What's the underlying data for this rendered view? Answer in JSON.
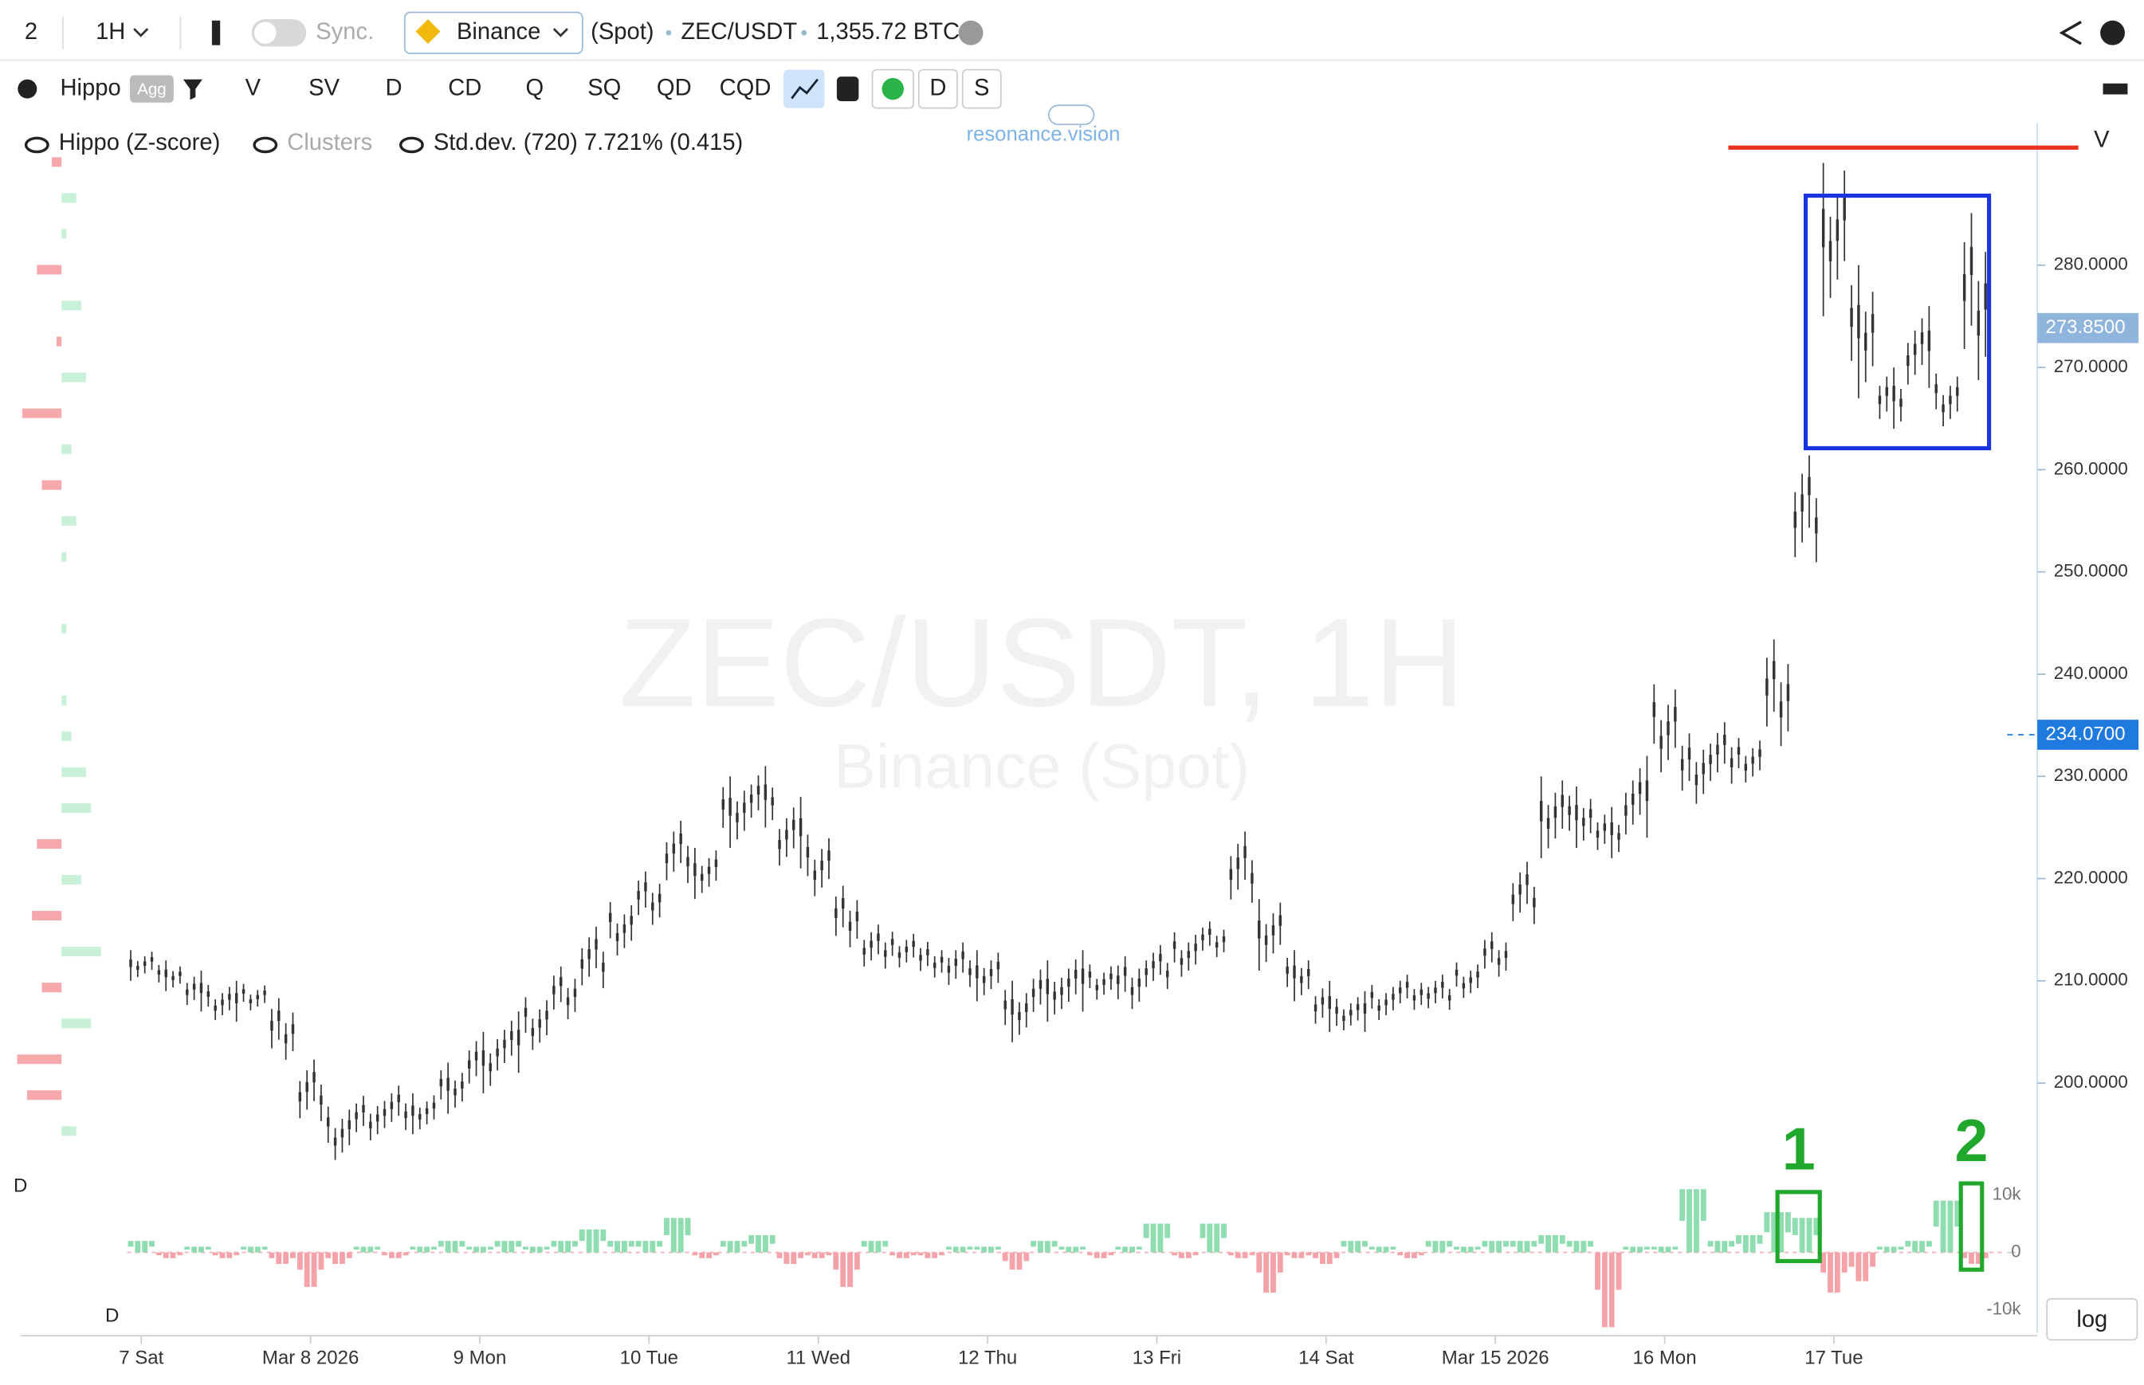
{
  "toolbar": {
    "layout": "2",
    "interval": "1H",
    "sync": "Sync.",
    "exchange": "Binance",
    "market": "(Spot)",
    "symbol": "ZEC/USDT",
    "volume": "1,355.72 BTC",
    "scale": "log"
  },
  "indicators": {
    "name": "Hippo",
    "badge": "Agg",
    "buttons": [
      "V",
      "SV",
      "D",
      "CD",
      "Q",
      "SQ",
      "QD",
      "CQD"
    ],
    "toggles": [
      "D",
      "S"
    ]
  },
  "legend": {
    "items": [
      "Hippo (Z-score)",
      "Clusters",
      "Std.dev. (720) 7.721% (0.415)"
    ],
    "brand": "resonance.vision"
  },
  "watermark": {
    "title": "ZEC/USDT, 1H",
    "subtitle": "Binance (Spot)"
  },
  "chart_data": [
    {
      "type": "range",
      "axis_label": "V",
      "color": "#333333",
      "x": [
        0,
        4,
        8,
        12,
        16,
        20,
        24,
        28,
        32,
        36,
        40,
        44,
        48,
        52,
        56,
        60,
        64,
        68,
        72,
        76,
        80,
        84,
        88,
        92,
        96,
        100,
        104,
        108,
        112,
        116,
        120,
        124,
        128,
        132,
        136,
        140,
        144,
        148,
        152,
        156,
        160,
        164,
        168,
        172,
        176,
        180,
        184,
        188,
        192,
        196,
        200,
        204,
        208,
        212,
        216,
        220,
        224,
        228,
        232,
        236,
        240,
        244,
        248,
        252,
        256,
        260
      ],
      "low": [
        210,
        209,
        207,
        206,
        207,
        202,
        196,
        192,
        194,
        195,
        195,
        197,
        199,
        201,
        203,
        206,
        209,
        212,
        215,
        219,
        218,
        223,
        225,
        221,
        218,
        213,
        211,
        211,
        210,
        209,
        208,
        204,
        206,
        207,
        208,
        207,
        209,
        210,
        212,
        217,
        211,
        208,
        205,
        205,
        206,
        207,
        207,
        208,
        210,
        215,
        222,
        223,
        222,
        224,
        230,
        227,
        229,
        229,
        232,
        250,
        275,
        267,
        264,
        268,
        264,
        268
      ],
      "high": [
        213,
        212,
        211,
        210,
        210,
        209,
        203,
        198,
        199,
        200,
        199,
        202,
        205,
        207,
        209,
        212,
        216,
        218,
        221,
        226,
        223,
        230,
        231,
        228,
        225,
        220,
        216,
        215,
        214,
        214,
        213,
        210,
        212,
        213,
        212,
        213,
        214,
        215,
        216,
        225,
        218,
        213,
        210,
        209,
        210,
        211,
        211,
        212,
        215,
        222,
        230,
        229,
        227,
        232,
        240,
        235,
        236,
        234,
        244,
        262,
        290,
        280,
        270,
        276,
        270,
        287
      ],
      "xlim": [
        -2,
        264
      ],
      "xticks": [
        {
          "value": 0,
          "label": "7 Sat"
        },
        {
          "value": 24,
          "label": "Mar 8 2026"
        },
        {
          "value": 48,
          "label": "9 Mon"
        },
        {
          "value": 72,
          "label": "10 Tue"
        },
        {
          "value": 96,
          "label": "11 Wed"
        },
        {
          "value": 120,
          "label": "12 Thu"
        },
        {
          "value": 144,
          "label": "13 Fri"
        },
        {
          "value": 168,
          "label": "14 Sat"
        },
        {
          "value": 192,
          "label": "Mar 15 2026"
        },
        {
          "value": 216,
          "label": "16 Mon"
        },
        {
          "value": 240,
          "label": "17 Tue"
        }
      ],
      "ylim": [
        191.6,
        293.9
      ],
      "yticks": [
        {
          "value": 200,
          "label": "200.0000"
        },
        {
          "value": 210,
          "label": "210.0000"
        },
        {
          "value": 220,
          "label": "220.0000"
        },
        {
          "value": 230,
          "label": "230.0000"
        },
        {
          "value": 240,
          "label": "240.0000"
        },
        {
          "value": 250,
          "label": "250.0000"
        },
        {
          "value": 260,
          "label": "260.0000"
        },
        {
          "value": 270,
          "label": "270.0000"
        },
        {
          "value": 280,
          "label": "280.0000"
        }
      ],
      "last_price": {
        "value": 273.85,
        "label": "273.8500"
      },
      "marker_price": {
        "value": 234.07,
        "label": "234.0700"
      },
      "resistance": {
        "value": 291.5,
        "color": "#e8321e"
      },
      "range_box": {
        "x": [
          236,
          262
        ],
        "y": [
          262.1,
          286.8
        ],
        "color": "#1a35e0"
      }
    },
    {
      "type": "bar",
      "axis_label": "D",
      "pos_color": "#8fdcb0",
      "neg_color": "#f5a3a8",
      "x": [
        0,
        4,
        8,
        12,
        16,
        20,
        24,
        28,
        32,
        36,
        40,
        44,
        48,
        52,
        56,
        60,
        64,
        68,
        72,
        76,
        80,
        84,
        88,
        92,
        96,
        100,
        104,
        108,
        112,
        116,
        120,
        124,
        128,
        132,
        136,
        140,
        144,
        148,
        152,
        156,
        160,
        164,
        168,
        172,
        176,
        180,
        184,
        188,
        192,
        196,
        200,
        204,
        208,
        212,
        216,
        220,
        224,
        228,
        232,
        236,
        240,
        244,
        248,
        252,
        256,
        260
      ],
      "values": [
        2,
        -1,
        1,
        -1,
        1,
        -2,
        -6,
        -2,
        1,
        -1,
        1,
        2,
        1,
        2,
        1,
        2,
        4,
        2,
        2,
        6,
        -1,
        2,
        3,
        -2,
        -1,
        -6,
        2,
        -1,
        -1,
        1,
        1,
        -3,
        2,
        1,
        -1,
        1,
        5,
        -1,
        5,
        -1,
        -7,
        -1,
        -2,
        2,
        1,
        -1,
        2,
        1,
        2,
        2,
        3,
        2,
        -13,
        1,
        1,
        11,
        2,
        3,
        7,
        6,
        -7,
        -5,
        1,
        2,
        9,
        -2
      ],
      "xlim": [
        -2,
        264
      ],
      "ylim": [
        -13.3,
        11.9
      ],
      "yticks": [
        {
          "value": -10,
          "label": "-10k"
        },
        0,
        {
          "value": 10,
          "label": "10k"
        }
      ],
      "annotations": [
        {
          "text": "1",
          "x": [
            232,
            238
          ],
          "y": [
            -1.5,
            10.5
          ]
        },
        {
          "text": "2",
          "x": [
            258,
            261
          ],
          "y": [
            -3,
            12
          ]
        }
      ],
      "color": "#1fa82c"
    },
    {
      "type": "hbar",
      "axis_label": "D",
      "pos_color": "#c9f0d8",
      "neg_color": "#f7a8ad",
      "values": [
        -2,
        3,
        1,
        -5,
        4,
        -1,
        5,
        -8,
        2,
        -4,
        3,
        1,
        0,
        1,
        0,
        1,
        2,
        5,
        6,
        -5,
        4,
        -6,
        8,
        -4,
        6,
        -9,
        -7,
        3
      ]
    }
  ]
}
